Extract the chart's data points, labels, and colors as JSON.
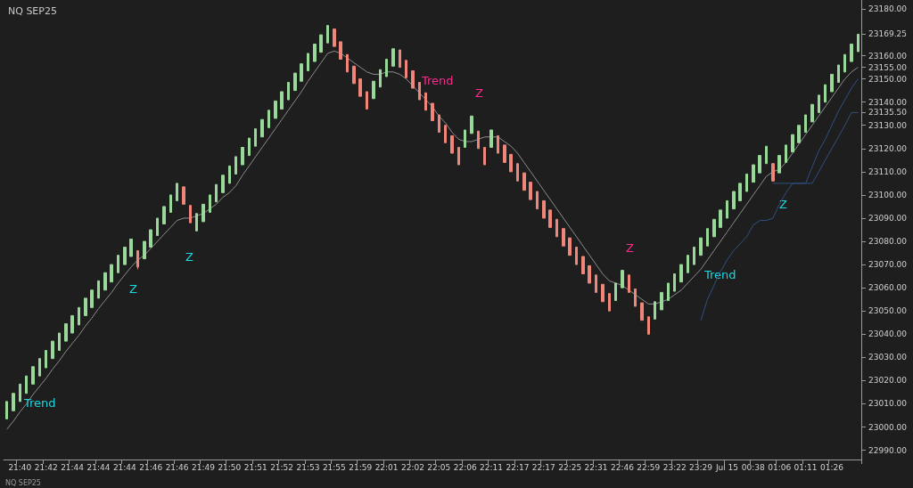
{
  "chart_data": {
    "type": "candlestick",
    "title": "NQ SEP25",
    "categories": [
      null,
      null,
      "21:40",
      null,
      null,
      null,
      "21:42",
      null,
      null,
      null,
      "21:44",
      null,
      null,
      null,
      "21:44",
      null,
      null,
      null,
      "21:44",
      null,
      null,
      null,
      "21:46",
      null,
      null,
      null,
      "21:46",
      null,
      null,
      null,
      "21:49",
      null,
      null,
      null,
      "21:50",
      null,
      null,
      null,
      "21:51",
      null,
      null,
      null,
      "21:52",
      null,
      null,
      null,
      "21:53",
      null,
      null,
      null,
      "21:55",
      null,
      null,
      null,
      "21:59",
      null,
      null,
      null,
      "22:01",
      null,
      null,
      null,
      "22:02",
      null,
      null,
      null,
      "22:05",
      null,
      null,
      null,
      "22:06",
      null,
      null,
      null,
      "22:11",
      null,
      null,
      null,
      "22:17",
      null,
      null,
      null,
      "22:17",
      null,
      null,
      null,
      "22:25",
      null,
      null,
      null,
      "22:31",
      null,
      null,
      null,
      "22:46",
      null,
      null,
      null,
      "22:59",
      null,
      null,
      null,
      "23:22",
      null,
      null,
      null,
      "23:29",
      null,
      null,
      null,
      "Jul 15",
      null,
      null,
      null,
      "00:38",
      null,
      null,
      null,
      "01:06",
      null,
      null,
      null,
      "01:11",
      null,
      null,
      null,
      "01:26",
      null,
      null,
      null,
      null
    ],
    "ylim": [
      22986,
      23184
    ],
    "yticks": [
      {
        "value": 22990,
        "label": "22990.00"
      },
      {
        "value": 23000,
        "label": "23000.00"
      },
      {
        "value": 23010,
        "label": "23010.00"
      },
      {
        "value": 23020,
        "label": "23020.00"
      },
      {
        "value": 23030,
        "label": "23030.00"
      },
      {
        "value": 23040,
        "label": "23040.00"
      },
      {
        "value": 23050,
        "label": "23050.00"
      },
      {
        "value": 23060,
        "label": "23060.00"
      },
      {
        "value": 23070,
        "label": "23070.00"
      },
      {
        "value": 23080,
        "label": "23080.00"
      },
      {
        "value": 23090,
        "label": "23090.00"
      },
      {
        "value": 23100,
        "label": "23100.00"
      },
      {
        "value": 23110,
        "label": "23110.00"
      },
      {
        "value": 23120,
        "label": "23120.00"
      },
      {
        "value": 23130,
        "label": "23130.00"
      },
      {
        "value": 23135.5,
        "label": "23135.50"
      },
      {
        "value": 23140,
        "label": "23140.00"
      },
      {
        "value": 23150,
        "label": "23150.00"
      },
      {
        "value": 23155,
        "label": "23155.00"
      },
      {
        "value": 23160,
        "label": "23160.00"
      },
      {
        "value": 23169.25,
        "label": "23169.25"
      },
      {
        "value": 23180,
        "label": "23180.00"
      }
    ],
    "grid": false,
    "series": [
      {
        "type": "candlestick",
        "colors": [
          "#98d898",
          "#98d898",
          "#98d898",
          "#98d898",
          "#98d898",
          "#98d898",
          "#98d898",
          "#98d898",
          "#98d898",
          "#98d898",
          "#98d898",
          "#98d898",
          "#98d898",
          "#98d898",
          "#98d898",
          "#98d898",
          "#98d898",
          "#98d898",
          "#98d898",
          "#98d898",
          "#f0857a",
          "#98d898",
          "#98d898",
          "#98d898",
          "#98d898",
          "#98d898",
          "#98d898",
          "#f0857a",
          "#f0857a",
          "#98d898",
          "#98d898",
          "#98d898",
          "#98d898",
          "#98d898",
          "#98d898",
          "#98d898",
          "#98d898",
          "#98d898",
          "#98d898",
          "#98d898",
          "#98d898",
          "#98d898",
          "#98d898",
          "#98d898",
          "#98d898",
          "#98d898",
          "#98d898",
          "#98d898",
          "#98d898",
          "#98d898",
          "#f0857a",
          "#f0857a",
          "#f0857a",
          "#f0857a",
          "#f0857a",
          "#f0857a",
          "#98d898",
          "#98d898",
          "#98d898",
          "#98d898",
          "#f0857a",
          "#f0857a",
          "#f0857a",
          "#f0857a",
          "#f0857a",
          "#f0857a",
          "#f0857a",
          "#f0857a",
          "#f0857a",
          "#f0857a",
          "#98d898",
          "#98d898",
          "#f0857a",
          "#f0857a",
          "#98d898",
          "#f0857a",
          "#f0857a",
          "#f0857a",
          "#f0857a",
          "#f0857a",
          "#f0857a",
          "#f0857a",
          "#f0857a",
          "#f0857a",
          "#f0857a",
          "#f0857a",
          "#f0857a",
          "#f0857a",
          "#f0857a",
          "#f0857a",
          "#f0857a",
          "#f0857a",
          "#f0857a",
          "#98d898",
          "#98d898",
          "#f0857a",
          "#f0857a",
          "#f0857a",
          "#f0857a",
          "#98d898",
          "#98d898",
          "#98d898",
          "#98d898",
          "#98d898",
          "#98d898",
          "#98d898",
          "#98d898",
          "#98d898",
          "#98d898",
          "#98d898",
          "#98d898",
          "#98d898",
          "#98d898",
          "#98d898",
          "#98d898",
          "#98d898",
          "#98d898",
          "#f0857a",
          "#98d898",
          "#98d898",
          "#98d898",
          "#98d898",
          "#98d898",
          "#98d898",
          "#98d898",
          "#98d898",
          "#98d898",
          "#98d898",
          "#98d898",
          "#98d898",
          "#98d898"
        ],
        "ohlc": [
          [
            23003.5,
            23011,
            23003.5,
            23011
          ],
          [
            23007,
            23014.5,
            23007,
            23014.5
          ],
          [
            23011,
            23018.5,
            23011,
            23018.5
          ],
          [
            23014.5,
            23022,
            23014.5,
            23022
          ],
          [
            23018.5,
            23026,
            23018.5,
            23026
          ],
          [
            23022,
            23029.5,
            23022,
            23029.5
          ],
          [
            23025.5,
            23033,
            23025.5,
            23033
          ],
          [
            23029.5,
            23037,
            23029.5,
            23037
          ],
          [
            23033,
            23040.5,
            23033,
            23040.5
          ],
          [
            23037,
            23044.5,
            23037,
            23044.5
          ],
          [
            23040.5,
            23048,
            23040.5,
            23048
          ],
          [
            23044,
            23051.5,
            23044,
            23051.5
          ],
          [
            23048,
            23055.5,
            23048,
            23055.5
          ],
          [
            23051.5,
            23059,
            23051.5,
            23059
          ],
          [
            23055.5,
            23063,
            23055.5,
            23063
          ],
          [
            23059,
            23066.5,
            23059,
            23066.5
          ],
          [
            23062.5,
            23070,
            23062.5,
            23070
          ],
          [
            23066.5,
            23074,
            23066.5,
            23074
          ],
          [
            23070,
            23077.5,
            23070,
            23077.5
          ],
          [
            23073.5,
            23081,
            23073.5,
            23081
          ],
          [
            23076,
            23076,
            23068,
            23069
          ],
          [
            23072.5,
            23080,
            23072.5,
            23080
          ],
          [
            23077.5,
            23085,
            23077.5,
            23085
          ],
          [
            23082.5,
            23090,
            23082.5,
            23090
          ],
          [
            23087.5,
            23095,
            23087.5,
            23095
          ],
          [
            23092.5,
            23100,
            23092.5,
            23100
          ],
          [
            23097.5,
            23105,
            23097.5,
            23105
          ],
          [
            23103.5,
            23103.5,
            23096,
            23096
          ],
          [
            23095.5,
            23095.5,
            23088,
            23088
          ],
          [
            23084.5,
            23092,
            23084.5,
            23092
          ],
          [
            23088.5,
            23096,
            23088.5,
            23096
          ],
          [
            23092.5,
            23100,
            23092.5,
            23100
          ],
          [
            23097,
            23104.5,
            23097,
            23104.5
          ],
          [
            23101,
            23108.5,
            23101,
            23108.5
          ],
          [
            23105,
            23112.5,
            23105,
            23112.5
          ],
          [
            23109,
            23116.5,
            23109,
            23116.5
          ],
          [
            23113,
            23120.5,
            23113,
            23120.5
          ],
          [
            23117,
            23124.5,
            23117,
            23124.5
          ],
          [
            23121,
            23128.5,
            23121,
            23128.5
          ],
          [
            23125,
            23132.5,
            23125,
            23132.5
          ],
          [
            23129,
            23136.5,
            23129,
            23136.5
          ],
          [
            23133,
            23140.5,
            23133,
            23140.5
          ],
          [
            23137,
            23144.5,
            23137,
            23144.5
          ],
          [
            23141,
            23148.5,
            23141,
            23148.5
          ],
          [
            23145,
            23152.5,
            23145,
            23152.5
          ],
          [
            23149,
            23156.5,
            23149,
            23156.5
          ],
          [
            23153.5,
            23161,
            23153.5,
            23161
          ],
          [
            23157.5,
            23165,
            23157.5,
            23165
          ],
          [
            23161.5,
            23169,
            23161.5,
            23169
          ],
          [
            23165.5,
            23173,
            23165.5,
            23173
          ],
          [
            23171.5,
            23171.5,
            23164,
            23164
          ],
          [
            23166,
            23166,
            23158.5,
            23158.5
          ],
          [
            23160.5,
            23160.5,
            23153,
            23153
          ],
          [
            23155.5,
            23155.5,
            23148,
            23148
          ],
          [
            23150,
            23150,
            23142.5,
            23142.5
          ],
          [
            23144.5,
            23144.5,
            23137,
            23137
          ],
          [
            23141.5,
            23149,
            23141.5,
            23149
          ],
          [
            23146.5,
            23154,
            23146.5,
            23154
          ],
          [
            23151,
            23158.5,
            23151,
            23158.5
          ],
          [
            23155.5,
            23163,
            23155.5,
            23163
          ],
          [
            23162.5,
            23162.5,
            23155,
            23155
          ],
          [
            23158,
            23158,
            23150.5,
            23150.5
          ],
          [
            23153.5,
            23153.5,
            23146,
            23146
          ],
          [
            23148.5,
            23148.5,
            23141,
            23141
          ],
          [
            23144,
            23144,
            23136.5,
            23136.5
          ],
          [
            23139.5,
            23139.5,
            23132,
            23132
          ],
          [
            23134.5,
            23134.5,
            23127,
            23127
          ],
          [
            23130,
            23130,
            23122.5,
            23122.5
          ],
          [
            23125.5,
            23125.5,
            23118,
            23118
          ],
          [
            23120.5,
            23120.5,
            23113,
            23113
          ],
          [
            23120.5,
            23128,
            23120.5,
            23128
          ],
          [
            23126.5,
            23134,
            23126.5,
            23134
          ],
          [
            23127.5,
            23127.5,
            23120,
            23120
          ],
          [
            23120.5,
            23120.5,
            23113,
            23113
          ],
          [
            23120.5,
            23128,
            23120.5,
            23128
          ],
          [
            23125.5,
            23125.5,
            23118,
            23118
          ],
          [
            23121.5,
            23121.5,
            23114,
            23114
          ],
          [
            23117.5,
            23117.5,
            23110,
            23110
          ],
          [
            23113.5,
            23113.5,
            23106,
            23106
          ],
          [
            23109.5,
            23109.5,
            23102,
            23102
          ],
          [
            23105.5,
            23105.5,
            23098,
            23098
          ],
          [
            23101.5,
            23101.5,
            23094,
            23094
          ],
          [
            23097.5,
            23097.5,
            23090,
            23090
          ],
          [
            23093.5,
            23093.5,
            23086,
            23086
          ],
          [
            23089.5,
            23089.5,
            23082,
            23082
          ],
          [
            23085.5,
            23085.5,
            23078,
            23078
          ],
          [
            23081.5,
            23081.5,
            23074,
            23074
          ],
          [
            23077.5,
            23077.5,
            23070,
            23070
          ],
          [
            23073.5,
            23073.5,
            23066,
            23066
          ],
          [
            23069.5,
            23069.5,
            23062,
            23062
          ],
          [
            23065.5,
            23065.5,
            23058,
            23058
          ],
          [
            23061.5,
            23061.5,
            23054,
            23054
          ],
          [
            23057.5,
            23057.5,
            23050,
            23050
          ],
          [
            23054.5,
            23062,
            23054.5,
            23062
          ],
          [
            23060,
            23067.5,
            23060,
            23067.5
          ],
          [
            23065.5,
            23065.5,
            23058,
            23058
          ],
          [
            23059.5,
            23059.5,
            23052,
            23052
          ],
          [
            23053.5,
            23053.5,
            23046,
            23046
          ],
          [
            23047.5,
            23047.5,
            23040,
            23040
          ],
          [
            23046.5,
            23054,
            23046.5,
            23054
          ],
          [
            23050.5,
            23058,
            23050.5,
            23058
          ],
          [
            23054.5,
            23062,
            23054.5,
            23062
          ],
          [
            23058.5,
            23066,
            23058.5,
            23066
          ],
          [
            23062.5,
            23070,
            23062.5,
            23070
          ],
          [
            23066.5,
            23074,
            23066.5,
            23074
          ],
          [
            23070,
            23077.5,
            23070,
            23077.5
          ],
          [
            23074,
            23081.5,
            23074,
            23081.5
          ],
          [
            23078,
            23085.5,
            23078,
            23085.5
          ],
          [
            23082,
            23089.5,
            23082,
            23089.5
          ],
          [
            23086,
            23093.5,
            23086,
            23093.5
          ],
          [
            23090,
            23097.5,
            23090,
            23097.5
          ],
          [
            23094,
            23101.5,
            23094,
            23101.5
          ],
          [
            23097.5,
            23105,
            23097.5,
            23105
          ],
          [
            23101.5,
            23109,
            23101.5,
            23109
          ],
          [
            23105.5,
            23113,
            23105.5,
            23113
          ],
          [
            23109.5,
            23117,
            23109.5,
            23117
          ],
          [
            23113.5,
            23121,
            23113.5,
            23121
          ],
          [
            23113.5,
            23113.5,
            23106,
            23106
          ],
          [
            23109.5,
            23117,
            23109.5,
            23117
          ],
          [
            23114,
            23121.5,
            23114,
            23121.5
          ],
          [
            23118.5,
            23126,
            23118.5,
            23126
          ],
          [
            23122.5,
            23130,
            23122.5,
            23130
          ],
          [
            23127,
            23134.5,
            23127,
            23134.5
          ],
          [
            23131.5,
            23139,
            23131.5,
            23139
          ],
          [
            23135.5,
            23143,
            23135.5,
            23143
          ],
          [
            23140,
            23147.5,
            23140,
            23147.5
          ],
          [
            23144.5,
            23152,
            23144.5,
            23152
          ],
          [
            23148.5,
            23156,
            23148.5,
            23156
          ],
          [
            23153,
            23160.5,
            23153,
            23160.5
          ],
          [
            23157.5,
            23165,
            23157.5,
            23165
          ],
          [
            23161.75,
            23169.25,
            23161.75,
            23169.25
          ]
        ]
      },
      {
        "type": "line",
        "color": "#8c8c8c",
        "values": [
          22999,
          23002.5,
          23006.5,
          23010,
          23014,
          23017.5,
          23021,
          23025,
          23028.5,
          23032.5,
          23036,
          23039.5,
          23043.5,
          23047,
          23051,
          23054.5,
          23058,
          23062,
          23065.5,
          23069,
          23072,
          23074,
          23077,
          23080,
          23083,
          23086,
          23089,
          23090,
          23090,
          23091,
          23092,
          23094,
          23096,
          23099,
          23101,
          23104,
          23108.5,
          23112.5,
          23116.5,
          23120.5,
          23124.5,
          23128.5,
          23132.5,
          23136.5,
          23140.5,
          23144.5,
          23149,
          23153,
          23157,
          23161,
          23162,
          23161,
          23159,
          23157,
          23155,
          23153,
          23152,
          23152,
          23153,
          23153,
          23152,
          23150,
          23147,
          23144,
          23141,
          23138,
          23134,
          23131,
          23127,
          23124,
          23123,
          23123,
          23124,
          23125,
          23125,
          23125,
          23123,
          23121,
          23118,
          23114,
          23110,
          23106,
          23102,
          23098,
          23094,
          23090,
          23086,
          23082,
          23078,
          23074,
          23070,
          23066,
          23063,
          23062,
          23061,
          23059,
          23057,
          23055,
          23053,
          23053,
          23054,
          23055,
          23057,
          23059,
          23062,
          23065,
          23068,
          23072,
          23076,
          23080,
          23084,
          23088,
          23092,
          23096,
          23100,
          23104,
          23108,
          23110,
          23111,
          23114,
          23118,
          23122,
          23126,
          23130,
          23134,
          23138,
          23142,
          23146,
          23150,
          23153,
          23155
        ]
      },
      {
        "type": "line",
        "color": "#2e5280",
        "values": [
          null,
          null,
          null,
          null,
          null,
          null,
          null,
          null,
          null,
          null,
          null,
          null,
          null,
          null,
          null,
          null,
          null,
          null,
          null,
          null,
          null,
          null,
          null,
          null,
          null,
          null,
          null,
          null,
          null,
          null,
          null,
          null,
          null,
          null,
          null,
          null,
          null,
          null,
          null,
          null,
          null,
          null,
          null,
          null,
          null,
          null,
          null,
          null,
          null,
          null,
          null,
          null,
          null,
          null,
          null,
          null,
          null,
          null,
          null,
          null,
          null,
          null,
          null,
          null,
          null,
          null,
          null,
          null,
          null,
          null,
          null,
          null,
          null,
          null,
          null,
          null,
          null,
          null,
          null,
          null,
          null,
          null,
          null,
          null,
          null,
          null,
          null,
          null,
          null,
          null,
          null,
          null,
          null,
          null,
          null,
          null,
          null,
          null,
          null,
          null,
          null,
          null,
          null,
          null,
          null,
          null,
          null,
          null,
          null,
          null,
          null,
          null,
          null,
          null,
          null,
          null,
          null,
          23105,
          23105,
          23105,
          23105,
          23105,
          23105,
          23112,
          23119,
          23124,
          23130,
          23136,
          23141,
          23146,
          23150
        ]
      },
      {
        "type": "line",
        "color": "#2e5280",
        "values": [
          null,
          null,
          null,
          null,
          null,
          null,
          null,
          null,
          null,
          null,
          null,
          null,
          null,
          null,
          null,
          null,
          null,
          null,
          null,
          null,
          null,
          null,
          null,
          null,
          null,
          null,
          null,
          null,
          null,
          null,
          null,
          null,
          null,
          null,
          null,
          null,
          null,
          null,
          null,
          null,
          null,
          null,
          null,
          null,
          null,
          null,
          null,
          null,
          null,
          null,
          null,
          null,
          null,
          null,
          null,
          null,
          null,
          null,
          null,
          null,
          null,
          null,
          null,
          null,
          null,
          null,
          null,
          null,
          null,
          null,
          null,
          null,
          null,
          null,
          null,
          null,
          null,
          null,
          null,
          null,
          null,
          null,
          null,
          null,
          null,
          null,
          null,
          null,
          null,
          null,
          null,
          null,
          null,
          null,
          null,
          null,
          null,
          null,
          null,
          null,
          null,
          null,
          null,
          null,
          null,
          null,
          23046,
          23055,
          23061,
          23067,
          23072,
          23076,
          23079,
          23082,
          23087,
          23089,
          23089,
          23090,
          23096,
          23101,
          23105,
          23105,
          23105,
          23105,
          23110,
          23115,
          23120,
          23125,
          23130,
          23135.5,
          23135.5
        ]
      }
    ],
    "annotations": [
      "Trend",
      "Trend",
      "Trend",
      "Z",
      "Z",
      "Z",
      "Z",
      "Z",
      "NQ SEP25"
    ]
  }
}
